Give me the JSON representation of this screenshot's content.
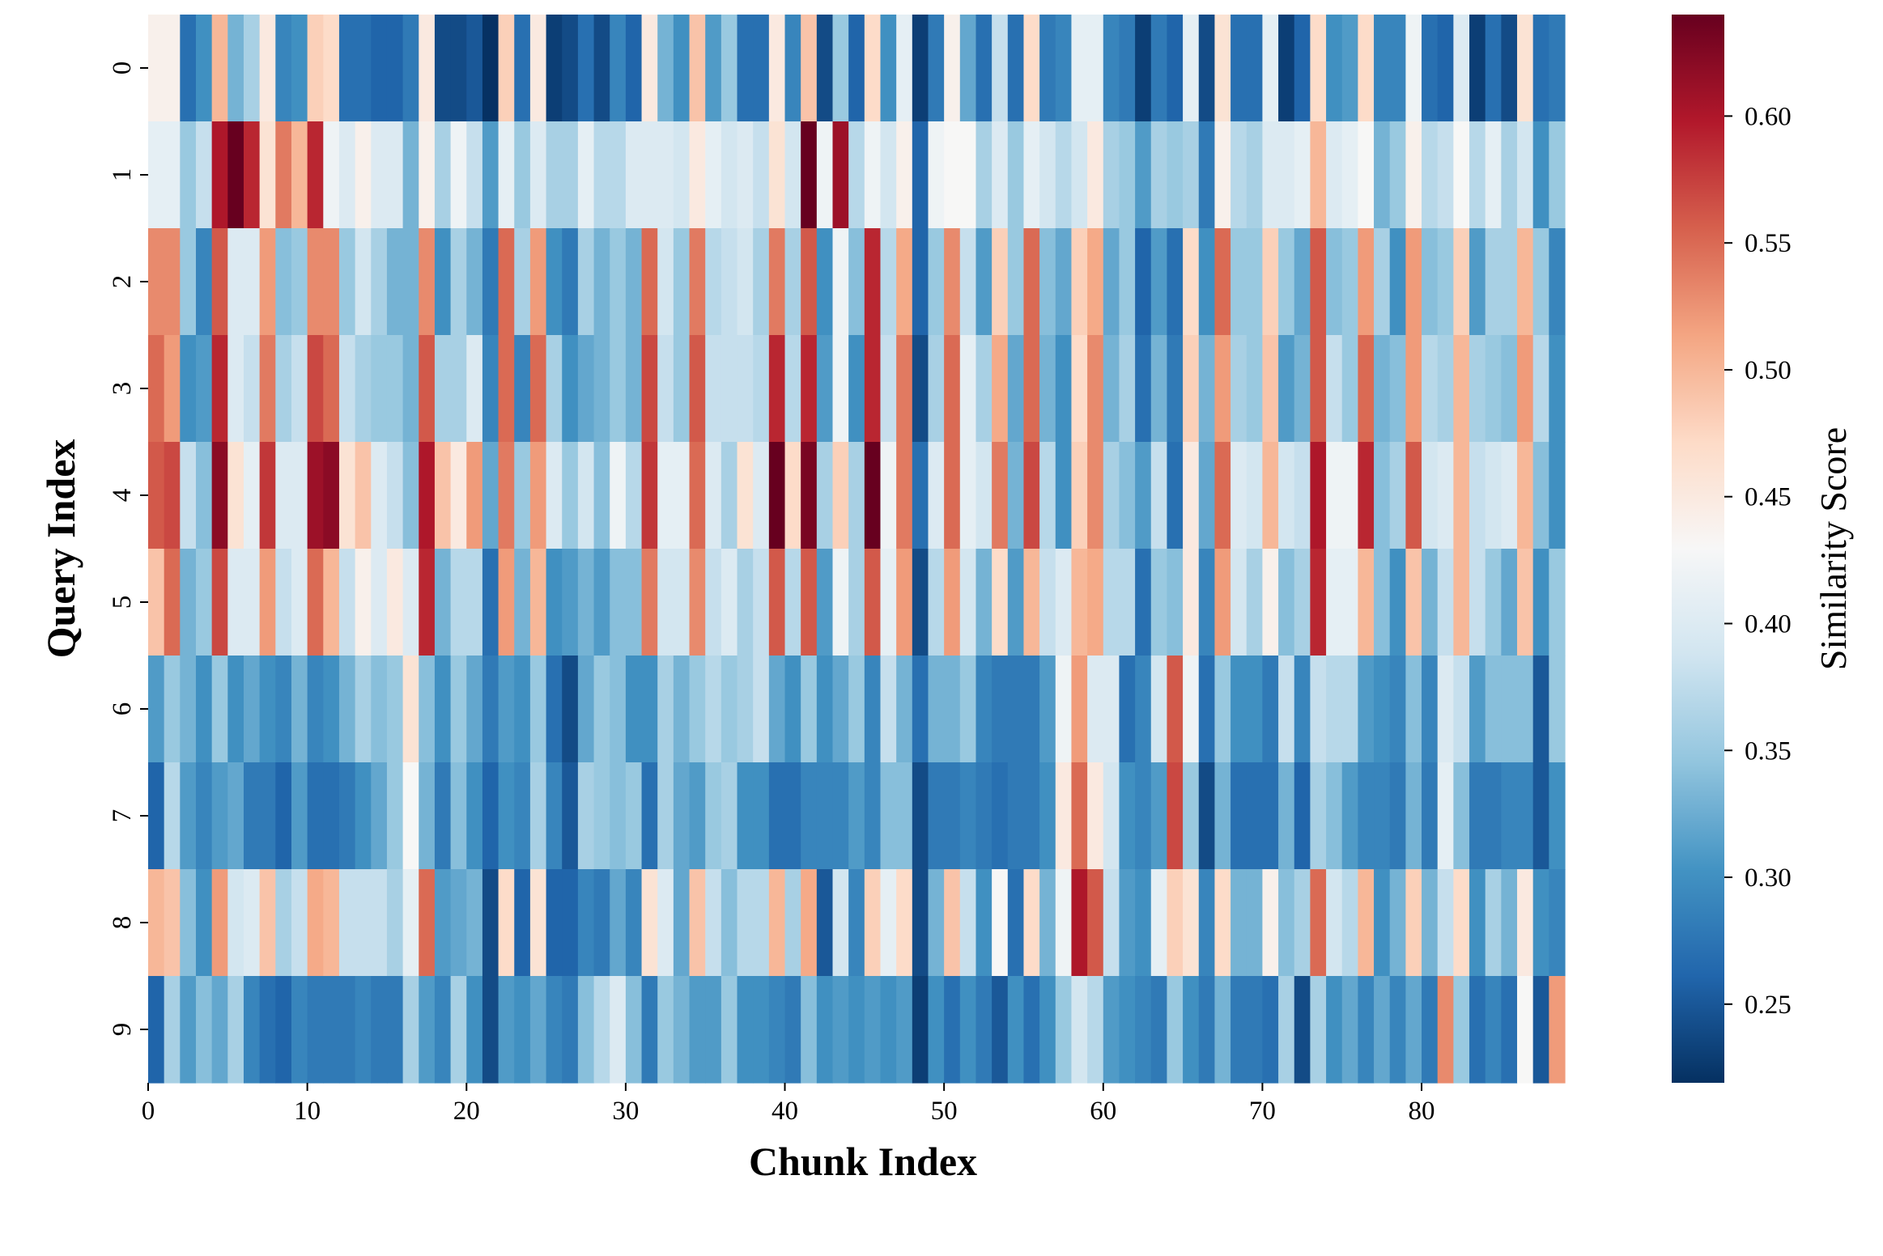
{
  "chart_data": {
    "type": "heatmap",
    "xlabel": "Chunk Index",
    "ylabel": "Query Index",
    "colorbar_label": "Similarity Score",
    "colormap": "RdBu_r",
    "vmin": 0.219,
    "vmax": 0.64,
    "colorbar_ticks": [
      "0.25",
      "0.30",
      "0.35",
      "0.40",
      "0.45",
      "0.50",
      "0.55",
      "0.60"
    ],
    "x_ticks": [
      "0",
      "10",
      "20",
      "30",
      "40",
      "50",
      "60",
      "70",
      "80"
    ],
    "y_ticks": [
      "0",
      "1",
      "2",
      "3",
      "4",
      "5",
      "6",
      "7",
      "8",
      "9"
    ],
    "n_columns": 89,
    "grid": false,
    "colorbar_placement": "right",
    "values": [
      [
        0.44,
        0.44,
        0.27,
        0.3,
        0.5,
        0.33,
        0.36,
        0.45,
        0.29,
        0.3,
        0.48,
        0.47,
        0.27,
        0.27,
        0.26,
        0.26,
        0.28,
        0.45,
        0.24,
        0.24,
        0.25,
        0.22,
        0.48,
        0.27,
        0.45,
        0.23,
        0.24,
        0.27,
        0.24,
        0.29,
        0.26,
        0.45,
        0.33,
        0.3,
        0.49,
        0.31,
        0.35,
        0.27,
        0.27,
        0.45,
        0.29,
        0.49,
        0.24,
        0.35,
        0.26,
        0.47,
        0.3,
        0.41,
        0.23,
        0.28,
        0.44,
        0.32,
        0.27,
        0.38,
        0.27,
        0.47,
        0.28,
        0.29,
        0.41,
        0.41,
        0.29,
        0.28,
        0.23,
        0.28,
        0.26,
        0.41,
        0.24,
        0.46,
        0.27,
        0.27,
        0.41,
        0.23,
        0.26,
        0.47,
        0.3,
        0.31,
        0.47,
        0.29,
        0.29,
        0.42,
        0.27,
        0.26,
        0.4,
        0.23,
        0.27,
        0.24,
        0.46,
        0.27,
        0.28
      ],
      [
        0.41,
        0.41,
        0.35,
        0.38,
        0.6,
        0.64,
        0.59,
        0.46,
        0.54,
        0.5,
        0.59,
        0.42,
        0.4,
        0.44,
        0.4,
        0.4,
        0.33,
        0.44,
        0.36,
        0.42,
        0.38,
        0.31,
        0.41,
        0.35,
        0.4,
        0.36,
        0.36,
        0.41,
        0.37,
        0.37,
        0.4,
        0.4,
        0.4,
        0.39,
        0.45,
        0.41,
        0.39,
        0.4,
        0.38,
        0.46,
        0.39,
        0.64,
        0.42,
        0.61,
        0.37,
        0.42,
        0.39,
        0.44,
        0.26,
        0.42,
        0.43,
        0.43,
        0.36,
        0.4,
        0.35,
        0.41,
        0.39,
        0.37,
        0.39,
        0.45,
        0.36,
        0.35,
        0.31,
        0.36,
        0.35,
        0.36,
        0.28,
        0.44,
        0.37,
        0.36,
        0.4,
        0.4,
        0.41,
        0.5,
        0.4,
        0.41,
        0.43,
        0.33,
        0.35,
        0.44,
        0.37,
        0.38,
        0.43,
        0.37,
        0.41,
        0.36,
        0.39,
        0.3,
        0.35
      ],
      [
        0.53,
        0.53,
        0.35,
        0.29,
        0.56,
        0.4,
        0.4,
        0.52,
        0.34,
        0.35,
        0.53,
        0.53,
        0.35,
        0.39,
        0.36,
        0.33,
        0.33,
        0.53,
        0.3,
        0.36,
        0.33,
        0.28,
        0.55,
        0.36,
        0.52,
        0.3,
        0.28,
        0.36,
        0.33,
        0.35,
        0.33,
        0.55,
        0.39,
        0.35,
        0.54,
        0.37,
        0.38,
        0.39,
        0.36,
        0.54,
        0.36,
        0.56,
        0.3,
        0.42,
        0.34,
        0.59,
        0.37,
        0.51,
        0.26,
        0.35,
        0.53,
        0.38,
        0.31,
        0.48,
        0.35,
        0.55,
        0.34,
        0.32,
        0.48,
        0.51,
        0.32,
        0.35,
        0.26,
        0.31,
        0.27,
        0.47,
        0.3,
        0.55,
        0.35,
        0.35,
        0.48,
        0.35,
        0.32,
        0.56,
        0.34,
        0.35,
        0.52,
        0.36,
        0.3,
        0.52,
        0.34,
        0.35,
        0.48,
        0.31,
        0.36,
        0.36,
        0.5,
        0.35,
        0.29
      ],
      [
        0.55,
        0.52,
        0.3,
        0.31,
        0.59,
        0.4,
        0.38,
        0.54,
        0.36,
        0.38,
        0.57,
        0.55,
        0.38,
        0.36,
        0.35,
        0.35,
        0.33,
        0.56,
        0.36,
        0.36,
        0.4,
        0.29,
        0.55,
        0.29,
        0.55,
        0.36,
        0.3,
        0.32,
        0.33,
        0.35,
        0.33,
        0.57,
        0.38,
        0.35,
        0.56,
        0.38,
        0.38,
        0.38,
        0.37,
        0.59,
        0.37,
        0.59,
        0.31,
        0.42,
        0.3,
        0.59,
        0.38,
        0.54,
        0.24,
        0.36,
        0.55,
        0.41,
        0.36,
        0.51,
        0.32,
        0.55,
        0.33,
        0.3,
        0.47,
        0.53,
        0.33,
        0.36,
        0.27,
        0.33,
        0.28,
        0.48,
        0.33,
        0.52,
        0.36,
        0.35,
        0.49,
        0.31,
        0.33,
        0.56,
        0.38,
        0.35,
        0.55,
        0.33,
        0.34,
        0.52,
        0.37,
        0.36,
        0.5,
        0.36,
        0.35,
        0.34,
        0.52,
        0.37,
        0.3
      ],
      [
        0.56,
        0.57,
        0.38,
        0.34,
        0.62,
        0.46,
        0.41,
        0.58,
        0.4,
        0.4,
        0.61,
        0.62,
        0.46,
        0.49,
        0.4,
        0.38,
        0.34,
        0.6,
        0.49,
        0.45,
        0.52,
        0.32,
        0.54,
        0.35,
        0.52,
        0.4,
        0.35,
        0.39,
        0.34,
        0.42,
        0.37,
        0.58,
        0.41,
        0.41,
        0.55,
        0.4,
        0.36,
        0.46,
        0.4,
        0.64,
        0.47,
        0.63,
        0.36,
        0.48,
        0.36,
        0.64,
        0.42,
        0.54,
        0.27,
        0.4,
        0.55,
        0.41,
        0.39,
        0.54,
        0.33,
        0.57,
        0.37,
        0.3,
        0.48,
        0.53,
        0.36,
        0.34,
        0.31,
        0.38,
        0.27,
        0.45,
        0.32,
        0.55,
        0.4,
        0.39,
        0.5,
        0.39,
        0.38,
        0.6,
        0.42,
        0.42,
        0.59,
        0.34,
        0.36,
        0.56,
        0.39,
        0.4,
        0.5,
        0.38,
        0.39,
        0.4,
        0.5,
        0.34,
        0.3
      ],
      [
        0.49,
        0.55,
        0.33,
        0.35,
        0.57,
        0.4,
        0.4,
        0.52,
        0.38,
        0.4,
        0.55,
        0.5,
        0.38,
        0.44,
        0.4,
        0.45,
        0.4,
        0.59,
        0.33,
        0.37,
        0.37,
        0.27,
        0.52,
        0.33,
        0.5,
        0.3,
        0.31,
        0.33,
        0.31,
        0.34,
        0.34,
        0.54,
        0.39,
        0.39,
        0.53,
        0.38,
        0.4,
        0.36,
        0.38,
        0.56,
        0.37,
        0.56,
        0.31,
        0.42,
        0.36,
        0.56,
        0.41,
        0.52,
        0.24,
        0.37,
        0.52,
        0.39,
        0.33,
        0.47,
        0.31,
        0.5,
        0.38,
        0.4,
        0.5,
        0.51,
        0.37,
        0.37,
        0.27,
        0.35,
        0.34,
        0.45,
        0.29,
        0.52,
        0.39,
        0.36,
        0.44,
        0.34,
        0.36,
        0.59,
        0.41,
        0.41,
        0.5,
        0.34,
        0.3,
        0.49,
        0.33,
        0.38,
        0.5,
        0.38,
        0.35,
        0.32,
        0.49,
        0.3,
        0.35
      ],
      [
        0.31,
        0.35,
        0.33,
        0.3,
        0.35,
        0.3,
        0.32,
        0.3,
        0.29,
        0.33,
        0.29,
        0.3,
        0.33,
        0.36,
        0.34,
        0.35,
        0.46,
        0.34,
        0.3,
        0.35,
        0.32,
        0.28,
        0.31,
        0.3,
        0.35,
        0.27,
        0.24,
        0.32,
        0.35,
        0.34,
        0.3,
        0.3,
        0.36,
        0.33,
        0.35,
        0.37,
        0.35,
        0.36,
        0.38,
        0.32,
        0.3,
        0.35,
        0.3,
        0.32,
        0.35,
        0.29,
        0.38,
        0.33,
        0.27,
        0.33,
        0.33,
        0.35,
        0.29,
        0.28,
        0.28,
        0.28,
        0.31,
        0.42,
        0.52,
        0.4,
        0.4,
        0.27,
        0.29,
        0.39,
        0.56,
        0.42,
        0.27,
        0.35,
        0.3,
        0.3,
        0.28,
        0.38,
        0.29,
        0.38,
        0.37,
        0.37,
        0.31,
        0.3,
        0.29,
        0.34,
        0.29,
        0.4,
        0.38,
        0.31,
        0.34,
        0.34,
        0.34,
        0.25,
        0.35
      ],
      [
        0.26,
        0.37,
        0.31,
        0.29,
        0.31,
        0.32,
        0.28,
        0.28,
        0.26,
        0.31,
        0.27,
        0.27,
        0.28,
        0.3,
        0.32,
        0.35,
        0.43,
        0.33,
        0.28,
        0.34,
        0.3,
        0.26,
        0.3,
        0.29,
        0.36,
        0.29,
        0.25,
        0.36,
        0.35,
        0.34,
        0.35,
        0.27,
        0.36,
        0.32,
        0.31,
        0.35,
        0.36,
        0.3,
        0.3,
        0.27,
        0.27,
        0.29,
        0.29,
        0.29,
        0.31,
        0.29,
        0.34,
        0.34,
        0.24,
        0.28,
        0.28,
        0.29,
        0.28,
        0.27,
        0.28,
        0.28,
        0.3,
        0.45,
        0.55,
        0.45,
        0.39,
        0.3,
        0.29,
        0.31,
        0.57,
        0.35,
        0.24,
        0.33,
        0.27,
        0.27,
        0.27,
        0.33,
        0.26,
        0.36,
        0.34,
        0.31,
        0.29,
        0.29,
        0.28,
        0.33,
        0.28,
        0.41,
        0.34,
        0.28,
        0.28,
        0.29,
        0.29,
        0.25,
        0.3
      ],
      [
        0.5,
        0.49,
        0.34,
        0.3,
        0.52,
        0.39,
        0.4,
        0.49,
        0.36,
        0.38,
        0.51,
        0.5,
        0.38,
        0.38,
        0.38,
        0.36,
        0.41,
        0.55,
        0.31,
        0.32,
        0.33,
        0.24,
        0.47,
        0.26,
        0.46,
        0.26,
        0.26,
        0.29,
        0.28,
        0.32,
        0.29,
        0.46,
        0.4,
        0.32,
        0.49,
        0.38,
        0.34,
        0.37,
        0.37,
        0.5,
        0.36,
        0.51,
        0.25,
        0.39,
        0.29,
        0.48,
        0.41,
        0.47,
        0.24,
        0.33,
        0.49,
        0.38,
        0.3,
        0.43,
        0.27,
        0.47,
        0.33,
        0.42,
        0.6,
        0.56,
        0.38,
        0.31,
        0.3,
        0.41,
        0.48,
        0.46,
        0.29,
        0.47,
        0.33,
        0.33,
        0.44,
        0.34,
        0.36,
        0.55,
        0.39,
        0.37,
        0.5,
        0.3,
        0.33,
        0.48,
        0.33,
        0.38,
        0.47,
        0.3,
        0.36,
        0.33,
        0.45,
        0.3,
        0.29
      ],
      [
        0.26,
        0.36,
        0.31,
        0.34,
        0.32,
        0.36,
        0.29,
        0.27,
        0.26,
        0.29,
        0.28,
        0.28,
        0.28,
        0.29,
        0.28,
        0.28,
        0.36,
        0.31,
        0.29,
        0.36,
        0.3,
        0.24,
        0.31,
        0.3,
        0.32,
        0.29,
        0.28,
        0.34,
        0.37,
        0.4,
        0.34,
        0.28,
        0.35,
        0.33,
        0.31,
        0.31,
        0.35,
        0.3,
        0.3,
        0.29,
        0.28,
        0.34,
        0.3,
        0.31,
        0.3,
        0.31,
        0.3,
        0.31,
        0.23,
        0.3,
        0.27,
        0.3,
        0.28,
        0.25,
        0.3,
        0.27,
        0.3,
        0.35,
        0.39,
        0.37,
        0.31,
        0.3,
        0.29,
        0.28,
        0.35,
        0.3,
        0.28,
        0.33,
        0.28,
        0.28,
        0.27,
        0.36,
        0.24,
        0.36,
        0.3,
        0.32,
        0.29,
        0.32,
        0.29,
        0.32,
        0.28,
        0.53,
        0.35,
        0.27,
        0.29,
        0.27,
        0.43,
        0.25,
        0.52
      ]
    ]
  }
}
